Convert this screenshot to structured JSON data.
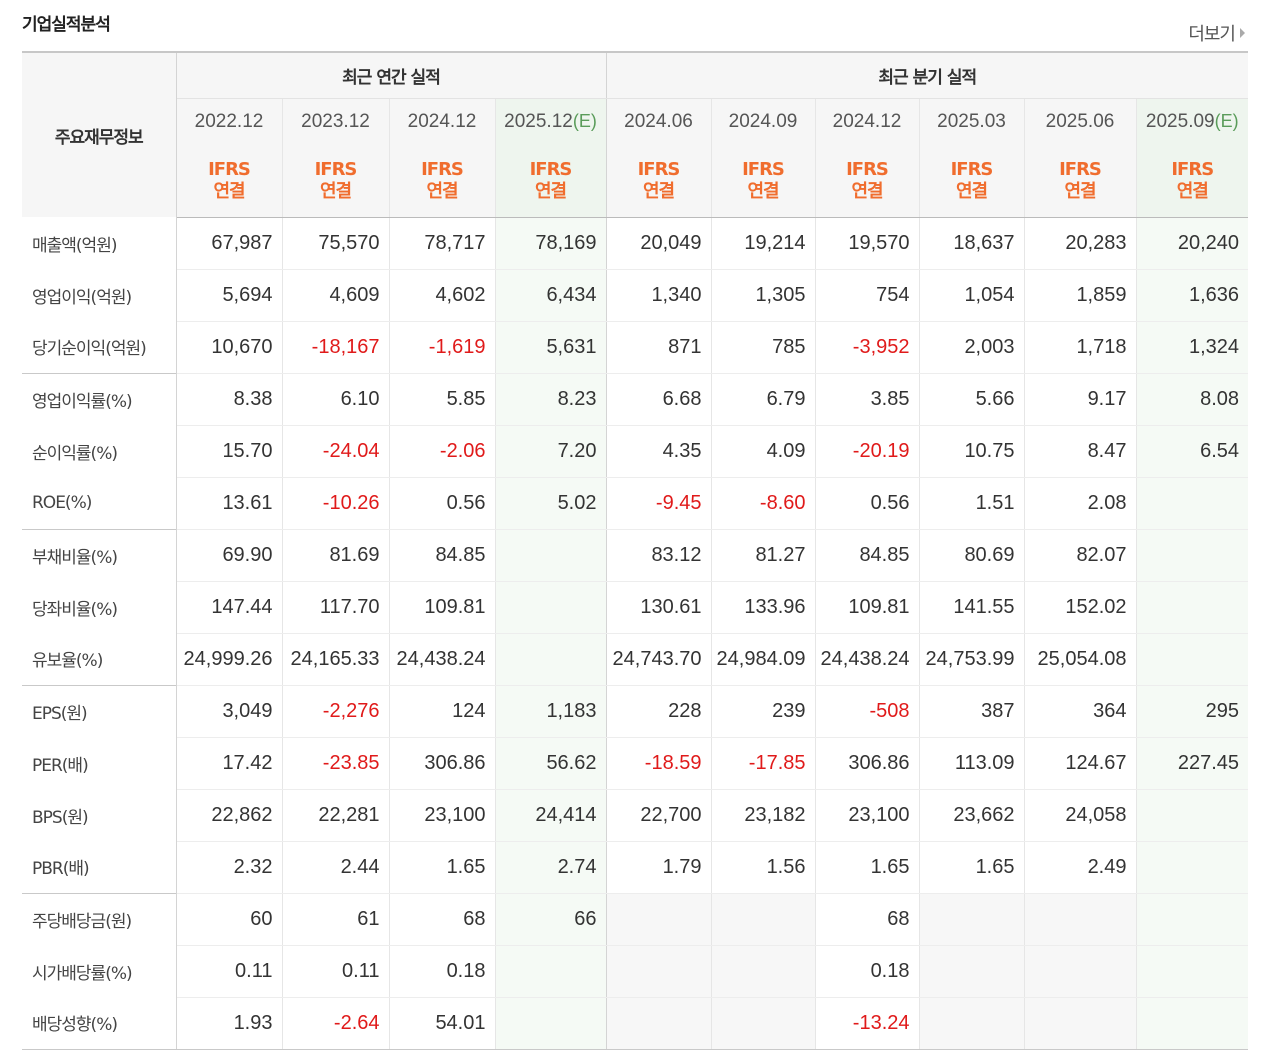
{
  "section": {
    "title": "기업실적분석",
    "more_label": "더보기"
  },
  "table": {
    "row_header_label": "주요재무정보",
    "groups": {
      "annual": "최근 연간 실적",
      "quarterly": "최근 분기 실적"
    },
    "periods": [
      "2022.12",
      "2023.12",
      "2024.12",
      "2025.12",
      "2024.06",
      "2024.09",
      "2024.12",
      "2025.03",
      "2025.06",
      "2025.09"
    ],
    "estimate_mark": "(E)",
    "basis_line1": "IFRS",
    "basis_line2": "연결",
    "rows": [
      {
        "label": "매출액(억원)",
        "values": [
          "67,987",
          "75,570",
          "78,717",
          "78,169",
          "20,049",
          "19,214",
          "19,570",
          "18,637",
          "20,283",
          "20,240"
        ]
      },
      {
        "label": "영업이익(억원)",
        "values": [
          "5,694",
          "4,609",
          "4,602",
          "6,434",
          "1,340",
          "1,305",
          "754",
          "1,054",
          "1,859",
          "1,636"
        ]
      },
      {
        "label": "당기순이익(억원)",
        "values": [
          "10,670",
          "-18,167",
          "-1,619",
          "5,631",
          "871",
          "785",
          "-3,952",
          "2,003",
          "1,718",
          "1,324"
        ]
      },
      {
        "label": "영업이익률(%)",
        "values": [
          "8.38",
          "6.10",
          "5.85",
          "8.23",
          "6.68",
          "6.79",
          "3.85",
          "5.66",
          "9.17",
          "8.08"
        ]
      },
      {
        "label": "순이익률(%)",
        "values": [
          "15.70",
          "-24.04",
          "-2.06",
          "7.20",
          "4.35",
          "4.09",
          "-20.19",
          "10.75",
          "8.47",
          "6.54"
        ]
      },
      {
        "label": "ROE(%)",
        "values": [
          "13.61",
          "-10.26",
          "0.56",
          "5.02",
          "-9.45",
          "-8.60",
          "0.56",
          "1.51",
          "2.08",
          ""
        ]
      },
      {
        "label": "부채비율(%)",
        "values": [
          "69.90",
          "81.69",
          "84.85",
          "",
          "83.12",
          "81.27",
          "84.85",
          "80.69",
          "82.07",
          ""
        ]
      },
      {
        "label": "당좌비율(%)",
        "values": [
          "147.44",
          "117.70",
          "109.81",
          "",
          "130.61",
          "133.96",
          "109.81",
          "141.55",
          "152.02",
          ""
        ]
      },
      {
        "label": "유보율(%)",
        "values": [
          "24,999.26",
          "24,165.33",
          "24,438.24",
          "",
          "24,743.70",
          "24,984.09",
          "24,438.24",
          "24,753.99",
          "25,054.08",
          ""
        ]
      },
      {
        "label": "EPS(원)",
        "values": [
          "3,049",
          "-2,276",
          "124",
          "1,183",
          "228",
          "239",
          "-508",
          "387",
          "364",
          "295"
        ]
      },
      {
        "label": "PER(배)",
        "values": [
          "17.42",
          "-23.85",
          "306.86",
          "56.62",
          "-18.59",
          "-17.85",
          "306.86",
          "113.09",
          "124.67",
          "227.45"
        ]
      },
      {
        "label": "BPS(원)",
        "values": [
          "22,862",
          "22,281",
          "23,100",
          "24,414",
          "22,700",
          "23,182",
          "23,100",
          "23,662",
          "24,058",
          ""
        ]
      },
      {
        "label": "PBR(배)",
        "values": [
          "2.32",
          "2.44",
          "1.65",
          "2.74",
          "1.79",
          "1.56",
          "1.65",
          "1.65",
          "2.49",
          ""
        ]
      },
      {
        "label": "주당배당금(원)",
        "values": [
          "60",
          "61",
          "68",
          "66",
          "",
          "",
          "68",
          "",
          "",
          ""
        ]
      },
      {
        "label": "시가배당률(%)",
        "values": [
          "0.11",
          "0.11",
          "0.18",
          "",
          "",
          "",
          "0.18",
          "",
          "",
          ""
        ]
      },
      {
        "label": "배당성향(%)",
        "values": [
          "1.93",
          "-2.64",
          "54.01",
          "",
          "",
          "",
          "-13.24",
          "",
          "",
          ""
        ]
      }
    ]
  },
  "colors": {
    "negative": "#e01a1a",
    "ifrs_accent": "#f06d2e",
    "estimate_mark": "#5a9c5a",
    "estimate_bg": "#f5faf5",
    "header_bg": "#f6f6f6"
  }
}
